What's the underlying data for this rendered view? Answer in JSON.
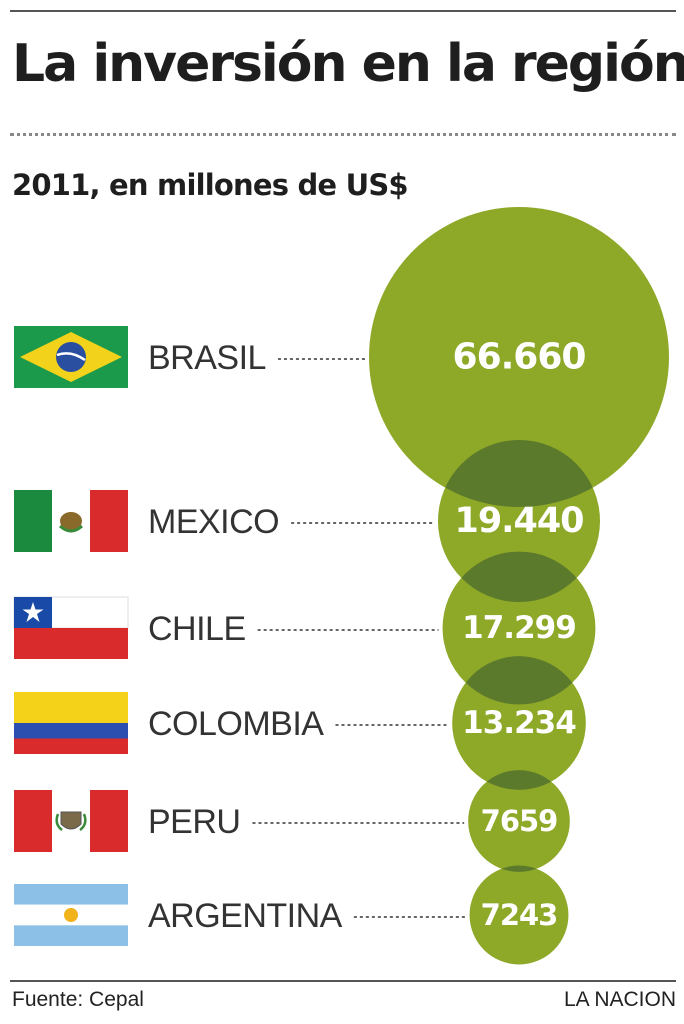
{
  "header": {
    "title": "La inversión en la región",
    "subtitle": "2011, en millones de US$"
  },
  "footer": {
    "source": "Fuente: Cepal",
    "credit": "LA NACION"
  },
  "colors": {
    "bubble": "#8ea828",
    "overlap": "#5c7a2c",
    "title": "#1e1e1e"
  },
  "chart_data": {
    "type": "bubble",
    "title": "La inversión en la región",
    "subtitle": "2011, en millones de US$",
    "categories": [
      "BRASIL",
      "MEXICO",
      "CHILE",
      "COLOMBIA",
      "PERU",
      "ARGENTINA"
    ],
    "values": [
      66660,
      19440,
      17299,
      13234,
      7659,
      7243
    ],
    "value_labels": [
      "66.660",
      "19.440",
      "17.299",
      "13.234",
      "7659",
      "7243"
    ],
    "flags": [
      "brazil-flag",
      "mexico-flag",
      "chile-flag",
      "colombia-flag",
      "peru-flag",
      "argentina-flag"
    ]
  }
}
